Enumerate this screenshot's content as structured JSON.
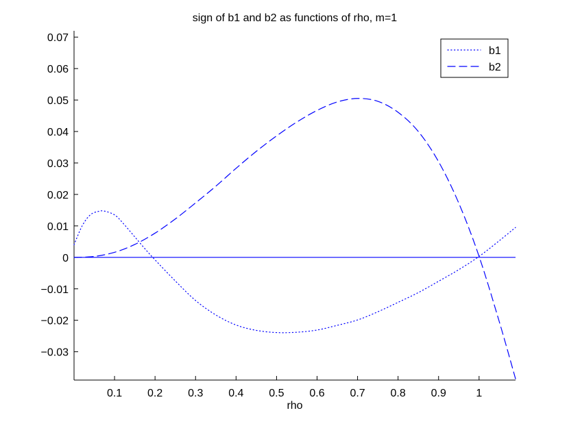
{
  "chart_data": {
    "type": "line",
    "title": "sign of b1 and b2 as functions of rho, m=1",
    "xlabel": "rho",
    "ylabel": "",
    "xlim": [
      0,
      1.09
    ],
    "ylim": [
      -0.039,
      0.072
    ],
    "xticks": [
      0.1,
      0.2,
      0.3,
      0.4,
      0.5,
      0.6,
      0.7,
      0.8,
      0.9,
      1
    ],
    "xtick_labels": [
      "0.1",
      "0.2",
      "0.3",
      "0.4",
      "0.5",
      "0.6",
      "0.7",
      "0.8",
      "0.9",
      "1"
    ],
    "yticks": [
      0.07,
      0.06,
      0.05,
      0.04,
      0.03,
      0.02,
      0.01,
      0,
      -0.01,
      -0.02,
      -0.03
    ],
    "ytick_labels": [
      "0.07",
      "0.06",
      "0.05",
      "0.04",
      "0.03",
      "0.02",
      "0.01",
      "0",
      "−0.01",
      "−0.02",
      "−0.03"
    ],
    "grid": false,
    "legend_position": "top-right",
    "zero_line": {
      "y": 0,
      "color": "#0000ff"
    },
    "series": [
      {
        "name": "b1",
        "style": "dotted",
        "color": "#0000ff",
        "x": [
          0,
          0.02,
          0.04,
          0.06,
          0.075,
          0.1,
          0.12,
          0.15,
          0.18,
          0.2,
          0.25,
          0.3,
          0.35,
          0.4,
          0.45,
          0.5,
          0.55,
          0.6,
          0.65,
          0.7,
          0.75,
          0.8,
          0.85,
          0.9,
          0.95,
          1.0,
          1.05,
          1.09
        ],
        "y": [
          0.004,
          0.01,
          0.0135,
          0.0146,
          0.0147,
          0.0135,
          0.011,
          0.0065,
          0.002,
          -0.0008,
          -0.0075,
          -0.0137,
          -0.0183,
          -0.0215,
          -0.0232,
          -0.0239,
          -0.0238,
          -0.0231,
          -0.0216,
          -0.0199,
          -0.0173,
          -0.0143,
          -0.0112,
          -0.0076,
          -0.0039,
          0.0003,
          0.0053,
          0.0095
        ]
      },
      {
        "name": "b2",
        "style": "dashed",
        "color": "#0000ff",
        "x": [
          0,
          0.05,
          0.1,
          0.15,
          0.2,
          0.25,
          0.3,
          0.35,
          0.4,
          0.45,
          0.5,
          0.55,
          0.6,
          0.65,
          0.7,
          0.75,
          0.8,
          0.85,
          0.9,
          0.95,
          1.0,
          1.05,
          1.09
        ],
        "y": [
          0,
          0.0003,
          0.0016,
          0.0041,
          0.0077,
          0.0122,
          0.0173,
          0.0226,
          0.0283,
          0.0337,
          0.0386,
          0.043,
          0.0467,
          0.0494,
          0.0505,
          0.0496,
          0.0461,
          0.04,
          0.0304,
          0.0172,
          0.0003,
          -0.0205,
          -0.0386
        ]
      }
    ]
  }
}
